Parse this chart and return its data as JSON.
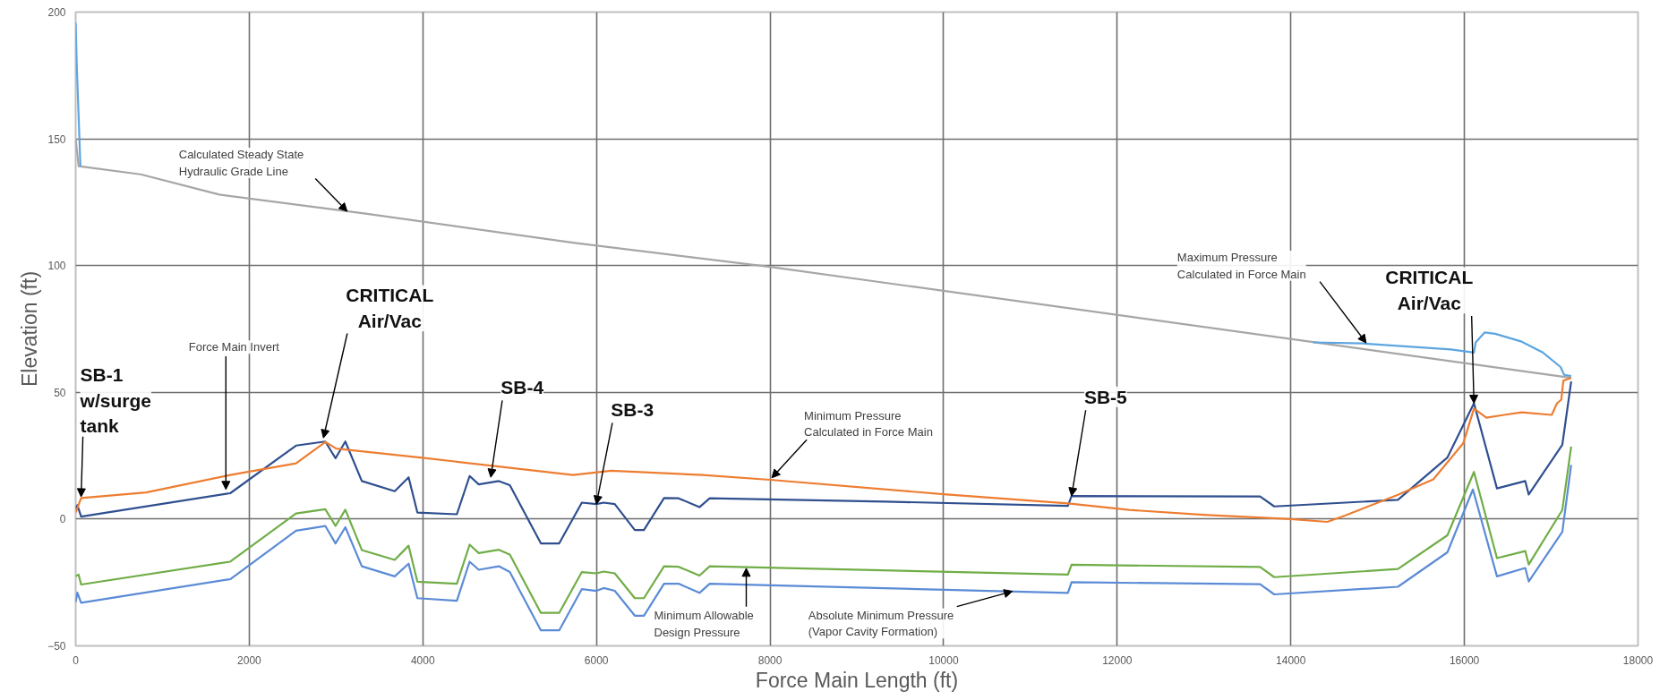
{
  "chart_data": {
    "type": "line",
    "xlabel": "Force Main Length (ft)",
    "ylabel": "Elevation (ft)",
    "xlim": [
      0,
      18000
    ],
    "ylim": [
      -50,
      200
    ],
    "xticks": [
      0,
      2000,
      4000,
      6000,
      8000,
      10000,
      12000,
      14000,
      16000,
      18000
    ],
    "yticks": [
      -50,
      0,
      50,
      100,
      150,
      200
    ],
    "grid": true,
    "series": [
      {
        "color": "#a6a6a6",
        "x": [
          0,
          34,
          749,
          1655,
          3339,
          5731,
          8000,
          17230
        ],
        "values": [
          150,
          139.2,
          136,
          128,
          120.5,
          109,
          99.5,
          55.7
        ]
      },
      {
        "color": "#5da5e0",
        "x": [
          0,
          13,
          55,
          7000,
          14257,
          14827,
          15845,
          16110,
          16130,
          16232,
          16354,
          16660,
          16904,
          17108,
          17149,
          17230
        ],
        "values": [
          195.8,
          178.8,
          139.2,
          null,
          69.7,
          69.3,
          66.9,
          65.7,
          69.7,
          73.6,
          73.1,
          70,
          65.7,
          60,
          56.9,
          56.4
        ]
      },
      {
        "color": "#2f4f8f",
        "x": [
          0,
          20,
          63,
          1781,
          2539,
          2876,
          2994,
          3107,
          3297,
          3676,
          3836,
          3937,
          4392,
          4539,
          4644,
          4876,
          5002,
          5360,
          5571,
          5832,
          6000,
          6084,
          6211,
          6442,
          6547,
          6779,
          6947,
          7187,
          7305,
          9326,
          11432,
          11474,
          13646,
          13809,
          15234,
          15804,
          16110,
          16375,
          16701,
          16741,
          17128,
          17230
        ],
        "values": [
          4,
          5.5,
          1,
          10.2,
          29,
          30.6,
          24,
          30.6,
          15,
          11,
          16.5,
          2.6,
          1.9,
          17,
          13.7,
          15,
          13.4,
          -9.6,
          -9.6,
          6.5,
          5.9,
          6.5,
          5.9,
          -4.3,
          -4.3,
          8.3,
          8.2,
          4.7,
          8.2,
          6.9,
          5.2,
          9.1,
          8.9,
          5,
          7.6,
          24.3,
          45.7,
          12.1,
          15,
          9.7,
          29.3,
          54.3
        ]
      },
      {
        "color": "#ed7d31",
        "x": [
          0,
          63,
          813,
          1781,
          2539,
          2876,
          3002,
          3992,
          5731,
          6168,
          7221,
          8000,
          10000,
          11432,
          12139,
          12994,
          14000,
          14420,
          14623,
          15234,
          15642,
          15988,
          16110,
          16253,
          16456,
          16660,
          17006,
          17067,
          17116,
          17140,
          17230
        ],
        "values": [
          2.6,
          8.3,
          10.5,
          17.4,
          22,
          30.4,
          27.8,
          24.2,
          17.4,
          19.1,
          17.4,
          15.5,
          9.8,
          6.2,
          3.6,
          1.7,
          0,
          -1.1,
          1.4,
          9.6,
          15.7,
          30,
          43.6,
          40,
          41.1,
          42.1,
          41.1,
          45.7,
          47.1,
          54.6,
          55.7
        ]
      },
      {
        "color": "#70ad47",
        "x": [
          0,
          34,
          63,
          1781,
          2539,
          2876,
          2994,
          3107,
          3297,
          3676,
          3836,
          3937,
          4392,
          4539,
          4644,
          4876,
          5002,
          5360,
          5571,
          5832,
          6000,
          6084,
          6211,
          6442,
          6547,
          6779,
          6947,
          7187,
          7305,
          11432,
          11474,
          13646,
          13809,
          15234,
          15804,
          16110,
          16375,
          16701,
          16741,
          17128,
          17230
        ],
        "values": [
          -22.5,
          -21.9,
          -25.8,
          -16.8,
          2.2,
          3.9,
          -2.7,
          3.7,
          -12.2,
          -16.1,
          -10.5,
          -24.7,
          -25.5,
          -10.1,
          -13.4,
          -12.1,
          -14,
          -37,
          -37,
          -20.9,
          -21.4,
          -20.7,
          -21.4,
          -31.2,
          -31.2,
          -18.6,
          -18.8,
          -22.3,
          -18.6,
          -21.9,
          -18,
          -18.9,
          -22.9,
          -19.7,
          -6.4,
          18.6,
          -15.4,
          -12.6,
          -17.9,
          3.6,
          28.6
        ]
      },
      {
        "color": "#5b8bd6",
        "x": [
          0,
          20,
          63,
          1781,
          2539,
          2876,
          2994,
          3107,
          3297,
          3676,
          3836,
          3937,
          4392,
          4539,
          4644,
          4876,
          5002,
          5360,
          5571,
          5832,
          6000,
          6084,
          6211,
          6442,
          6547,
          6779,
          6947,
          7187,
          7305,
          11432,
          11474,
          13646,
          13809,
          15234,
          15804,
          16098,
          16375,
          16701,
          16741,
          17128,
          17230
        ],
        "values": [
          -32.7,
          -29,
          -33,
          -23.7,
          -4.6,
          -2.7,
          -9.6,
          -3.2,
          -18.6,
          -22.6,
          -17.6,
          -31.2,
          -32.2,
          -16.8,
          -20,
          -18.6,
          -20.9,
          -43.9,
          -43.9,
          -27.6,
          -28.3,
          -27.2,
          -28.3,
          -38.1,
          -38.1,
          -25.5,
          -25.5,
          -29.1,
          -25.5,
          -29.1,
          -24.9,
          -25.7,
          -29.7,
          -26.7,
          -13.1,
          11.7,
          -22.6,
          -19.3,
          -24.6,
          -5,
          21.4
        ]
      }
    ],
    "annotations": [
      {
        "text": "Calculated Steady State\nHydraulic Grade Line",
        "x": 3128,
        "y": 121.4
      },
      {
        "text": "Force Main Invert",
        "x": 1731,
        "y": 11.7
      },
      {
        "text": "SB-1\nw/surge\ntank",
        "x": 63,
        "y": 8.8
      },
      {
        "text": "CRITICAL\nAir/Vac",
        "x": 2855,
        "y": 32
      },
      {
        "text": "SB-4",
        "x": 4783,
        "y": 16.5
      },
      {
        "text": "SB-3",
        "x": 6000,
        "y": 5.9
      },
      {
        "text": "Minimum Pressure\nCalculated in Force Main",
        "x": 8021,
        "y": 16.3
      },
      {
        "text": "SB-5",
        "x": 11474,
        "y": 9.1
      },
      {
        "text": "Minimum Allowable\nDesign Pressure",
        "x": 7726,
        "y": -19.4
      },
      {
        "text": "Absolute Minimum Pressure\n(Vapor Cavity Formation)",
        "x": 10792,
        "y": -28.5
      },
      {
        "text": "Maximum Pressure\nCalculated in Force Main",
        "x": 14868,
        "y": 69.5
      },
      {
        "text": "CRITICAL\nAir/Vac",
        "x": 16110,
        "y": 45.7
      }
    ]
  }
}
